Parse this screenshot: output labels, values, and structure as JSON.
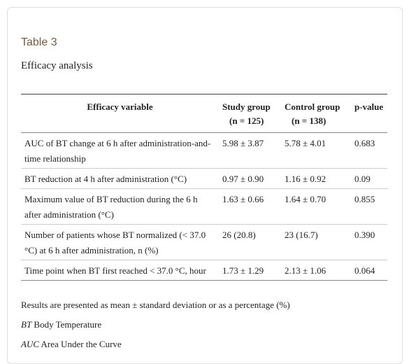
{
  "header": {
    "label": "Table 3",
    "caption": "Efficacy analysis"
  },
  "table": {
    "columns": [
      {
        "title": "Efficacy variable"
      },
      {
        "title": "Study group",
        "subtitle": "(n = 125)"
      },
      {
        "title": "Control group",
        "subtitle": "(n = 138)"
      },
      {
        "title": "p-value"
      }
    ],
    "rows": [
      [
        "AUC of BT change at 6 h after administration-and-time relationship",
        "5.98 ± 3.87",
        "5.78 ± 4.01",
        "0.683"
      ],
      [
        "BT reduction at 4 h after administration (°C)",
        "0.97 ± 0.90",
        "1.16 ± 0.92",
        "0.09"
      ],
      [
        "Maximum value of BT reduction during the 6 h after administration (°C)",
        "1.63 ± 0.66",
        "1.64 ± 0.70",
        "0.855"
      ],
      [
        "Number of patients whose BT normalized (< 37.0 °C) at 6 h after administration, n (%)",
        "26 (20.8)",
        "23 (16.7)",
        "0.390"
      ],
      [
        "Time point when BT first reached < 37.0 °C, hour",
        "1.73 ± 1.29",
        "2.13 ± 1.06",
        "0.064"
      ]
    ]
  },
  "footnotes": {
    "note": "Results are presented as mean ± standard deviation or as a percentage (%)",
    "abbreviations": [
      {
        "abbr": "BT",
        "meaning": "Body Temperature"
      },
      {
        "abbr": "AUC",
        "meaning": "Area Under the Curve"
      }
    ]
  }
}
